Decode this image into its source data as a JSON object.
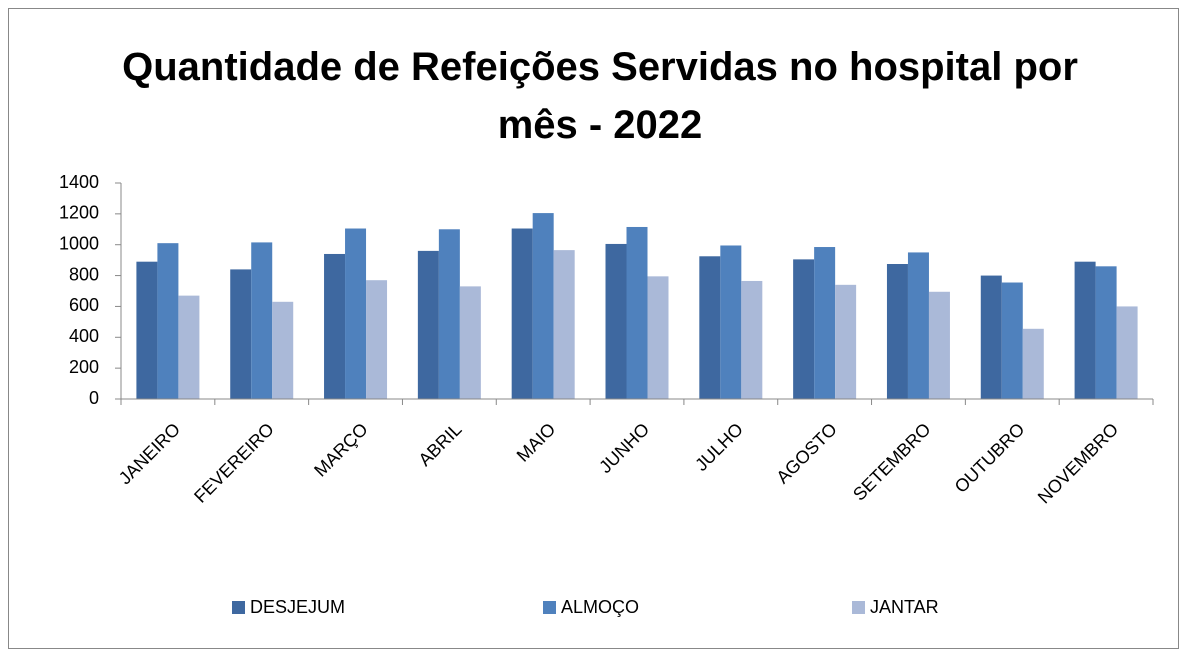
{
  "chart_data": {
    "type": "bar",
    "title": "Quantidade de Refeições Servidas no hospital por mês - 2022",
    "categories": [
      "JANEIRO",
      "FEVEREIRO",
      "MARÇO",
      "ABRIL",
      "MAIO",
      "JUNHO",
      "JULHO",
      "AGOSTO",
      "SETEMBRO",
      "OUTUBRO",
      "NOVEMBRO"
    ],
    "series": [
      {
        "name": "DESJEJUM",
        "color": "#3e68a0",
        "values": [
          890,
          840,
          940,
          960,
          1105,
          1005,
          925,
          905,
          875,
          800,
          890
        ]
      },
      {
        "name": "ALMOÇO",
        "color": "#4f81bd",
        "values": [
          1010,
          1015,
          1105,
          1100,
          1205,
          1115,
          995,
          985,
          950,
          755,
          860
        ]
      },
      {
        "name": "JANTAR",
        "color": "#aab9d8",
        "values": [
          670,
          630,
          770,
          730,
          965,
          795,
          765,
          740,
          695,
          455,
          600
        ]
      }
    ],
    "ylim": [
      0,
      1400
    ],
    "yticks": [
      0,
      200,
      400,
      600,
      800,
      1000,
      1200,
      1400
    ],
    "grid": false,
    "legend": "bottom"
  }
}
